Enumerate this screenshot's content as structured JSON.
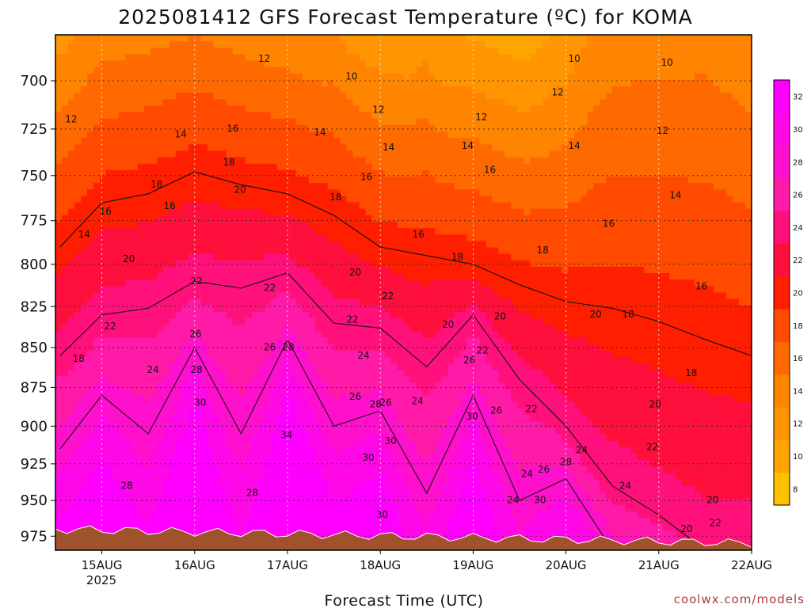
{
  "chart_data": {
    "type": "heatmap",
    "title": "2025081412 GFS Forecast Temperature (ºC) for KOMA",
    "xlabel": "Forecast Time (UTC)",
    "credit": "coolwx.com/models",
    "x_ticks": [
      "15AUG",
      "16AUG",
      "17AUG",
      "18AUG",
      "19AUG",
      "20AUG",
      "21AUG",
      "22AUG"
    ],
    "x_tick_year": "2025",
    "x_range_days": [
      14.5,
      22.0
    ],
    "y_ticks": [
      700,
      725,
      750,
      775,
      800,
      825,
      850,
      875,
      900,
      925,
      950,
      975
    ],
    "y_range_hpa": [
      677,
      985
    ],
    "y_scale": "log-pressure",
    "grid": true,
    "colorbar": {
      "levels": [
        8,
        10,
        12,
        14,
        16,
        18,
        20,
        22,
        24,
        26,
        28,
        30,
        32
      ],
      "colors": [
        "#ffc000",
        "#ffa500",
        "#ff9500",
        "#ff8500",
        "#ff6a00",
        "#ff4a00",
        "#ff1e00",
        "#ff0f3c",
        "#ff107a",
        "#ff1aa8",
        "#ff10cc",
        "#ff08e8",
        "#ff00ff"
      ]
    },
    "ground_color": "#a0522d",
    "series": [
      {
        "isotherm": 20,
        "points": [
          [
            14.55,
            790
          ],
          [
            15.0,
            765
          ],
          [
            15.5,
            760
          ],
          [
            16.0,
            748
          ],
          [
            16.5,
            755
          ],
          [
            17.0,
            760
          ],
          [
            17.5,
            772
          ],
          [
            18.0,
            790
          ],
          [
            18.5,
            795
          ],
          [
            19.0,
            800
          ],
          [
            19.5,
            812
          ],
          [
            20.0,
            822
          ],
          [
            20.5,
            826
          ],
          [
            21.0,
            834
          ],
          [
            21.5,
            845
          ],
          [
            22.0,
            855
          ]
        ]
      },
      {
        "isotherm": 24,
        "points": [
          [
            14.55,
            855
          ],
          [
            15.0,
            830
          ],
          [
            15.5,
            826
          ],
          [
            16.0,
            810
          ],
          [
            16.5,
            814
          ],
          [
            17.0,
            805
          ],
          [
            17.5,
            835
          ],
          [
            18.0,
            838
          ],
          [
            18.5,
            862
          ],
          [
            19.0,
            830
          ],
          [
            19.5,
            870
          ],
          [
            20.0,
            900
          ],
          [
            20.5,
            940
          ],
          [
            21.0,
            960
          ],
          [
            21.5,
            985
          ],
          [
            22.0,
            985
          ]
        ]
      },
      {
        "isotherm": 28,
        "points": [
          [
            14.55,
            915
          ],
          [
            15.0,
            880
          ],
          [
            15.5,
            905
          ],
          [
            16.0,
            850
          ],
          [
            16.5,
            905
          ],
          [
            17.0,
            845
          ],
          [
            17.5,
            900
          ],
          [
            18.0,
            890
          ],
          [
            18.5,
            945
          ],
          [
            19.0,
            880
          ],
          [
            19.5,
            950
          ],
          [
            20.0,
            935
          ],
          [
            20.5,
            985
          ],
          [
            21.0,
            985
          ],
          [
            21.5,
            985
          ],
          [
            22.0,
            985
          ]
        ]
      }
    ],
    "contour_labels": [
      {
        "text": "12",
        "x": 14.67,
        "p": 720
      },
      {
        "text": "16",
        "x": 15.04,
        "p": 770
      },
      {
        "text": "14",
        "x": 14.81,
        "p": 783
      },
      {
        "text": "20",
        "x": 15.29,
        "p": 797
      },
      {
        "text": "18",
        "x": 15.59,
        "p": 755
      },
      {
        "text": "16",
        "x": 15.73,
        "p": 767
      },
      {
        "text": "22",
        "x": 16.02,
        "p": 810
      },
      {
        "text": "14",
        "x": 15.85,
        "p": 728
      },
      {
        "text": "22",
        "x": 15.09,
        "p": 837
      },
      {
        "text": "18",
        "x": 14.75,
        "p": 857
      },
      {
        "text": "24",
        "x": 15.55,
        "p": 864
      },
      {
        "text": "26",
        "x": 16.01,
        "p": 842
      },
      {
        "text": "28",
        "x": 16.02,
        "p": 864
      },
      {
        "text": "30",
        "x": 16.06,
        "p": 885
      },
      {
        "text": "28",
        "x": 15.27,
        "p": 940
      },
      {
        "text": "28",
        "x": 16.62,
        "p": 945
      },
      {
        "text": "12",
        "x": 16.75,
        "p": 689
      },
      {
        "text": "16",
        "x": 16.41,
        "p": 725
      },
      {
        "text": "18",
        "x": 16.37,
        "p": 743
      },
      {
        "text": "20",
        "x": 16.49,
        "p": 758
      },
      {
        "text": "22",
        "x": 16.81,
        "p": 814
      },
      {
        "text": "26",
        "x": 16.81,
        "p": 850
      },
      {
        "text": "28",
        "x": 17.01,
        "p": 850
      },
      {
        "text": "34",
        "x": 16.99,
        "p": 906
      },
      {
        "text": "10",
        "x": 17.69,
        "p": 698
      },
      {
        "text": "12",
        "x": 17.98,
        "p": 715
      },
      {
        "text": "14",
        "x": 17.35,
        "p": 727
      },
      {
        "text": "14",
        "x": 18.09,
        "p": 735
      },
      {
        "text": "16",
        "x": 17.85,
        "p": 751
      },
      {
        "text": "18",
        "x": 17.52,
        "p": 762
      },
      {
        "text": "20",
        "x": 17.73,
        "p": 805
      },
      {
        "text": "22",
        "x": 18.08,
        "p": 819
      },
      {
        "text": "22",
        "x": 17.7,
        "p": 833
      },
      {
        "text": "24",
        "x": 17.82,
        "p": 855
      },
      {
        "text": "26",
        "x": 17.73,
        "p": 881
      },
      {
        "text": "28",
        "x": 17.95,
        "p": 886
      },
      {
        "text": "26",
        "x": 18.06,
        "p": 885
      },
      {
        "text": "24",
        "x": 18.4,
        "p": 884
      },
      {
        "text": "30",
        "x": 18.11,
        "p": 910
      },
      {
        "text": "30",
        "x": 17.87,
        "p": 921
      },
      {
        "text": "30",
        "x": 18.02,
        "p": 960
      },
      {
        "text": "16",
        "x": 18.41,
        "p": 783
      },
      {
        "text": "18",
        "x": 18.83,
        "p": 796
      },
      {
        "text": "20",
        "x": 18.73,
        "p": 836
      },
      {
        "text": "20",
        "x": 19.29,
        "p": 831
      },
      {
        "text": "22",
        "x": 19.1,
        "p": 852
      },
      {
        "text": "26",
        "x": 18.96,
        "p": 858
      },
      {
        "text": "26",
        "x": 19.25,
        "p": 890
      },
      {
        "text": "30",
        "x": 18.99,
        "p": 894
      },
      {
        "text": "14",
        "x": 18.94,
        "p": 734
      },
      {
        "text": "12",
        "x": 19.09,
        "p": 719
      },
      {
        "text": "16",
        "x": 19.18,
        "p": 747
      },
      {
        "text": "18",
        "x": 19.75,
        "p": 792
      },
      {
        "text": "22",
        "x": 19.63,
        "p": 889
      },
      {
        "text": "24",
        "x": 19.58,
        "p": 932
      },
      {
        "text": "26",
        "x": 19.76,
        "p": 929
      },
      {
        "text": "28",
        "x": 20.0,
        "p": 924
      },
      {
        "text": "24",
        "x": 20.17,
        "p": 916
      },
      {
        "text": "24",
        "x": 19.43,
        "p": 950
      },
      {
        "text": "30",
        "x": 19.72,
        "p": 950
      },
      {
        "text": "10",
        "x": 20.09,
        "p": 689
      },
      {
        "text": "12",
        "x": 19.91,
        "p": 706
      },
      {
        "text": "14",
        "x": 20.09,
        "p": 734
      },
      {
        "text": "16",
        "x": 20.46,
        "p": 777
      },
      {
        "text": "20",
        "x": 20.32,
        "p": 830
      },
      {
        "text": "18",
        "x": 20.67,
        "p": 830
      },
      {
        "text": "10",
        "x": 21.09,
        "p": 691
      },
      {
        "text": "12",
        "x": 21.04,
        "p": 726
      },
      {
        "text": "14",
        "x": 21.18,
        "p": 761
      },
      {
        "text": "16",
        "x": 21.46,
        "p": 813
      },
      {
        "text": "18",
        "x": 21.35,
        "p": 866
      },
      {
        "text": "20",
        "x": 20.96,
        "p": 886
      },
      {
        "text": "22",
        "x": 20.93,
        "p": 914
      },
      {
        "text": "24",
        "x": 20.64,
        "p": 940
      },
      {
        "text": "20",
        "x": 21.58,
        "p": 950
      },
      {
        "text": "20",
        "x": 21.3,
        "p": 970
      },
      {
        "text": "22",
        "x": 21.61,
        "p": 966
      }
    ]
  }
}
